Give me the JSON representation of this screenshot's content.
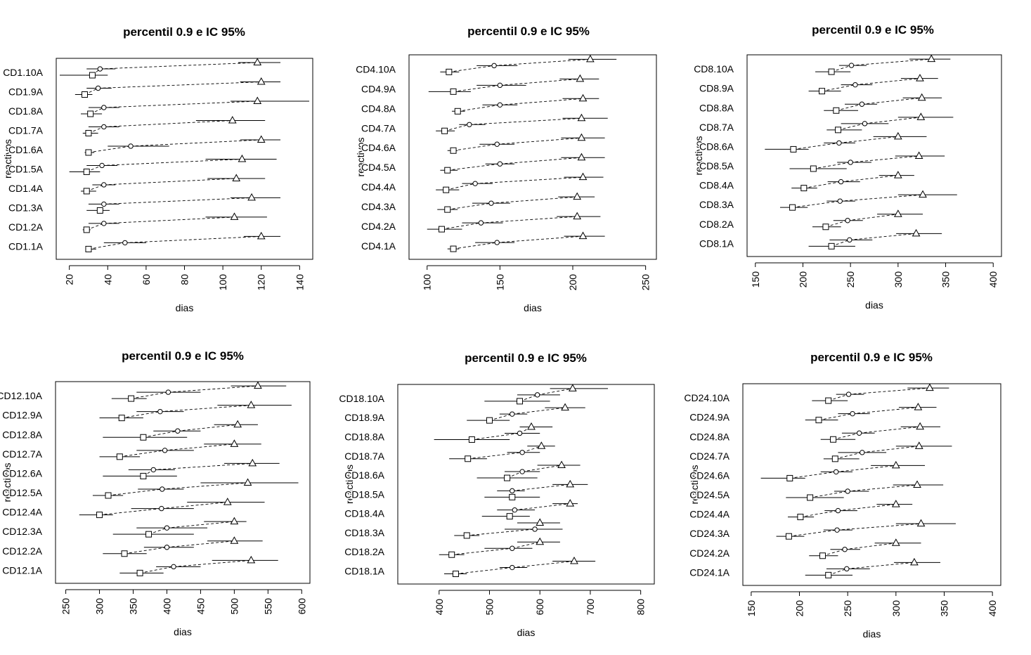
{
  "chart_data": [
    {
      "type": "dot-interval",
      "title": "percentil 0.9 e IC 95%",
      "xlabel": "dias",
      "ylabel": "reactivos",
      "xlim": [
        15,
        145
      ],
      "xticks": [
        20,
        40,
        60,
        80,
        100,
        120,
        140
      ],
      "categories": [
        "CD1.1A",
        "CD1.2A",
        "CD1.3A",
        "CD1.4A",
        "CD1.5A",
        "CD1.6A",
        "CD1.7A",
        "CD1.8A",
        "CD1.9A",
        "CD1.10A"
      ],
      "series": [
        {
          "marker": "square",
          "values": [
            30,
            29,
            36,
            29,
            29,
            30,
            30,
            31,
            28,
            32
          ],
          "lower": [
            29,
            27,
            29,
            26,
            20,
            28,
            27,
            26,
            23,
            15
          ],
          "upper": [
            34,
            31,
            41,
            34,
            36,
            33,
            35,
            37,
            32,
            40
          ]
        },
        {
          "marker": "circle",
          "values": [
            49,
            38,
            38,
            38,
            37,
            52,
            38,
            38,
            35,
            36
          ],
          "lower": [
            38,
            30,
            30,
            32,
            29,
            40,
            30,
            30,
            29,
            29
          ],
          "upper": [
            60,
            46,
            46,
            44,
            45,
            72,
            46,
            46,
            42,
            44
          ]
        },
        {
          "marker": "triangle",
          "values": [
            120,
            106,
            115,
            107,
            110,
            120,
            105,
            118,
            120,
            118
          ],
          "lower": [
            111,
            91,
            104,
            92,
            91,
            109,
            86,
            104,
            109,
            108
          ],
          "upper": [
            130,
            123,
            130,
            122,
            128,
            130,
            122,
            145,
            130,
            130
          ]
        }
      ]
    },
    {
      "type": "dot-interval",
      "title": "percentil 0.9 e IC 95%",
      "xlabel": "dias",
      "ylabel": "reactivos",
      "xlim": [
        90,
        255
      ],
      "xticks": [
        100,
        150,
        200,
        250
      ],
      "categories": [
        "CD4.1A",
        "CD4.2A",
        "CD4.3A",
        "CD4.4A",
        "CD4.5A",
        "CD4.6A",
        "CD4.7A",
        "CD4.8A",
        "CD4.9A",
        "CD4.10A"
      ],
      "series": [
        {
          "marker": "square",
          "values": [
            118,
            110,
            114,
            113,
            114,
            118,
            112,
            121,
            118,
            115
          ],
          "lower": [
            114,
            100,
            107,
            106,
            109,
            114,
            106,
            117,
            101,
            109
          ],
          "upper": [
            122,
            124,
            121,
            122,
            121,
            121,
            119,
            126,
            130,
            122
          ]
        },
        {
          "marker": "circle",
          "values": [
            148,
            137,
            144,
            133,
            150,
            148,
            129,
            150,
            150,
            146
          ],
          "lower": [
            133,
            124,
            131,
            124,
            140,
            136,
            122,
            138,
            134,
            134
          ],
          "upper": [
            160,
            152,
            157,
            145,
            160,
            160,
            140,
            162,
            168,
            162
          ]
        },
        {
          "marker": "triangle",
          "values": [
            207,
            203,
            203,
            207,
            206,
            206,
            206,
            207,
            205,
            212
          ],
          "lower": [
            194,
            189,
            190,
            194,
            192,
            192,
            193,
            193,
            191,
            197
          ],
          "upper": [
            222,
            219,
            215,
            221,
            222,
            222,
            224,
            218,
            218,
            230
          ]
        }
      ]
    },
    {
      "type": "dot-interval",
      "title": "percentil 0.9 e IC 95%",
      "xlabel": "dias",
      "ylabel": "reactivos",
      "xlim": [
        145,
        405
      ],
      "xticks": [
        150,
        200,
        250,
        300,
        350,
        400
      ],
      "categories": [
        "CD8.1A",
        "CD8.2A",
        "CD8.3A",
        "CD8.4A",
        "CD8.5A",
        "CD8.6A",
        "CD8.7A",
        "CD8.8A",
        "CD8.9A",
        "CD8.10A"
      ],
      "series": [
        {
          "marker": "square",
          "values": [
            230,
            224,
            189,
            201,
            211,
            190,
            237,
            235,
            220,
            230
          ],
          "lower": [
            206,
            210,
            176,
            188,
            186,
            160,
            225,
            222,
            206,
            213
          ],
          "upper": [
            255,
            240,
            205,
            215,
            246,
            206,
            262,
            258,
            240,
            250
          ]
        },
        {
          "marker": "circle",
          "values": [
            249,
            247,
            239,
            240,
            250,
            238,
            265,
            262,
            255,
            251
          ],
          "lower": [
            228,
            232,
            225,
            226,
            236,
            222,
            240,
            244,
            240,
            238
          ],
          "upper": [
            273,
            263,
            255,
            260,
            272,
            255,
            290,
            278,
            273,
            267
          ]
        },
        {
          "marker": "triangle",
          "values": [
            319,
            300,
            326,
            300,
            322,
            300,
            324,
            325,
            323,
            335
          ],
          "lower": [
            298,
            278,
            300,
            280,
            297,
            274,
            300,
            305,
            303,
            312
          ],
          "upper": [
            346,
            326,
            362,
            317,
            349,
            330,
            358,
            346,
            342,
            355
          ]
        }
      ]
    },
    {
      "type": "dot-interval",
      "title": "percentil 0.9 e IC 95%",
      "xlabel": "dias",
      "ylabel": "reactivos",
      "xlim": [
        240,
        607
      ],
      "xticks": [
        250,
        300,
        350,
        400,
        450,
        500,
        550,
        600
      ],
      "categories": [
        "CD12.1A",
        "CD12.2A",
        "CD12.3A",
        "CD12.4A",
        "CD12.5A",
        "CD12.6A",
        "CD12.7A",
        "CD12.8A",
        "CD12.9A",
        "CD12.10A"
      ],
      "series": [
        {
          "marker": "square",
          "values": [
            360,
            337,
            373,
            300,
            313,
            365,
            330,
            365,
            333,
            347
          ],
          "lower": [
            330,
            305,
            320,
            270,
            290,
            305,
            300,
            305,
            300,
            318
          ],
          "upper": [
            395,
            370,
            440,
            320,
            335,
            415,
            360,
            430,
            365,
            370
          ]
        },
        {
          "marker": "circle",
          "values": [
            410,
            400,
            400,
            392,
            393,
            380,
            397,
            416,
            390,
            402
          ],
          "lower": [
            384,
            366,
            355,
            347,
            357,
            343,
            355,
            380,
            355,
            355
          ],
          "upper": [
            450,
            440,
            460,
            440,
            425,
            412,
            440,
            450,
            425,
            450
          ]
        },
        {
          "marker": "triangle",
          "values": [
            525,
            500,
            500,
            490,
            520,
            527,
            500,
            505,
            525,
            535
          ],
          "lower": [
            467,
            460,
            455,
            430,
            450,
            485,
            455,
            470,
            475,
            495
          ],
          "upper": [
            565,
            542,
            518,
            545,
            595,
            567,
            540,
            535,
            585,
            577
          ]
        }
      ]
    },
    {
      "type": "dot-interval",
      "title": "percentil 0.9 e IC 95%",
      "xlabel": "dias",
      "ylabel": "reactivos",
      "xlim": [
        325,
        820
      ],
      "xticks": [
        400,
        500,
        600,
        700,
        800
      ],
      "categories": [
        "CD18.1A",
        "CD18.2A",
        "CD18.3A",
        "CD18.4A",
        "CD18.5A",
        "CD18.6A",
        "CD18.7A",
        "CD18.8A",
        "CD18.9A",
        "CD18.10A"
      ],
      "series": [
        {
          "marker": "square",
          "values": [
            433,
            425,
            455,
            540,
            545,
            535,
            457,
            465,
            500,
            560
          ],
          "lower": [
            410,
            400,
            430,
            485,
            490,
            475,
            420,
            390,
            455,
            490
          ],
          "upper": [
            455,
            450,
            480,
            580,
            600,
            595,
            495,
            540,
            540,
            620
          ]
        },
        {
          "marker": "circle",
          "values": [
            545,
            545,
            590,
            550,
            545,
            565,
            565,
            560,
            545,
            595
          ],
          "lower": [
            520,
            490,
            530,
            515,
            515,
            530,
            535,
            530,
            520,
            555
          ],
          "upper": [
            575,
            585,
            645,
            590,
            570,
            600,
            600,
            600,
            575,
            640
          ]
        },
        {
          "marker": "triangle",
          "values": [
            668,
            600,
            600,
            660,
            660,
            643,
            603,
            583,
            650,
            665
          ],
          "lower": [
            625,
            555,
            555,
            625,
            625,
            595,
            575,
            560,
            610,
            620
          ],
          "upper": [
            710,
            640,
            640,
            675,
            695,
            680,
            630,
            625,
            690,
            735
          ]
        }
      ]
    },
    {
      "type": "dot-interval",
      "title": "percentil 0.9 e IC 95%",
      "xlabel": "dias",
      "ylabel": "reactivos",
      "xlim": [
        145,
        405
      ],
      "xticks": [
        150,
        200,
        250,
        300,
        350,
        400
      ],
      "categories": [
        "CD24.1A",
        "CD24.2A",
        "CD24.3A",
        "CD24.4A",
        "CD24.5A",
        "CD24.6A",
        "CD24.7A",
        "CD24.8A",
        "CD24.9A",
        "CD24.10A"
      ],
      "series": [
        {
          "marker": "square",
          "values": [
            230,
            224,
            189,
            201,
            211,
            190,
            237,
            235,
            220,
            230
          ],
          "lower": [
            206,
            210,
            176,
            188,
            186,
            160,
            225,
            222,
            206,
            213
          ],
          "upper": [
            255,
            240,
            205,
            215,
            246,
            206,
            262,
            258,
            240,
            250
          ]
        },
        {
          "marker": "circle",
          "values": [
            249,
            247,
            239,
            240,
            250,
            238,
            265,
            262,
            255,
            251
          ],
          "lower": [
            228,
            232,
            225,
            226,
            236,
            222,
            240,
            244,
            240,
            238
          ],
          "upper": [
            273,
            263,
            255,
            260,
            272,
            255,
            290,
            278,
            273,
            267
          ]
        },
        {
          "marker": "triangle",
          "values": [
            319,
            300,
            326,
            300,
            322,
            300,
            324,
            325,
            323,
            335
          ],
          "lower": [
            298,
            278,
            300,
            280,
            297,
            274,
            300,
            305,
            303,
            312
          ],
          "upper": [
            346,
            326,
            362,
            317,
            349,
            330,
            358,
            346,
            342,
            355
          ]
        }
      ]
    }
  ]
}
